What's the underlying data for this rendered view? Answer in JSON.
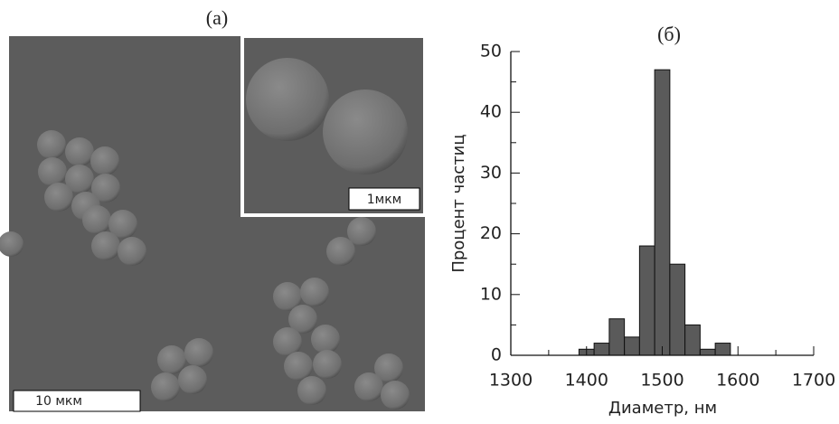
{
  "panel_a": {
    "label": "(a)",
    "scale_bar": "10 мкм",
    "inset_scale_bar": "1мкм"
  },
  "chart_data": {
    "type": "histogram",
    "title": "(б)",
    "x_label": "Диаметр, нм",
    "y_label": "Процент частиц",
    "bins": [
      1390,
      1410,
      1430,
      1450,
      1470,
      1490,
      1510,
      1530,
      1550,
      1570,
      1590
    ],
    "values": [
      1,
      2,
      6,
      3,
      18,
      47,
      15,
      5,
      1,
      2
    ],
    "color": "#5a5a5a",
    "xlim": [
      1300,
      1700
    ],
    "xticks": [
      1300,
      1400,
      1500,
      1600,
      1700
    ],
    "xminorticks": [
      1350,
      1450,
      1550,
      1650
    ],
    "ylim": [
      0,
      50
    ],
    "yticks": [
      0,
      10,
      20,
      30,
      40,
      50
    ],
    "yminorticks": [
      5,
      15,
      25,
      35,
      45
    ]
  }
}
